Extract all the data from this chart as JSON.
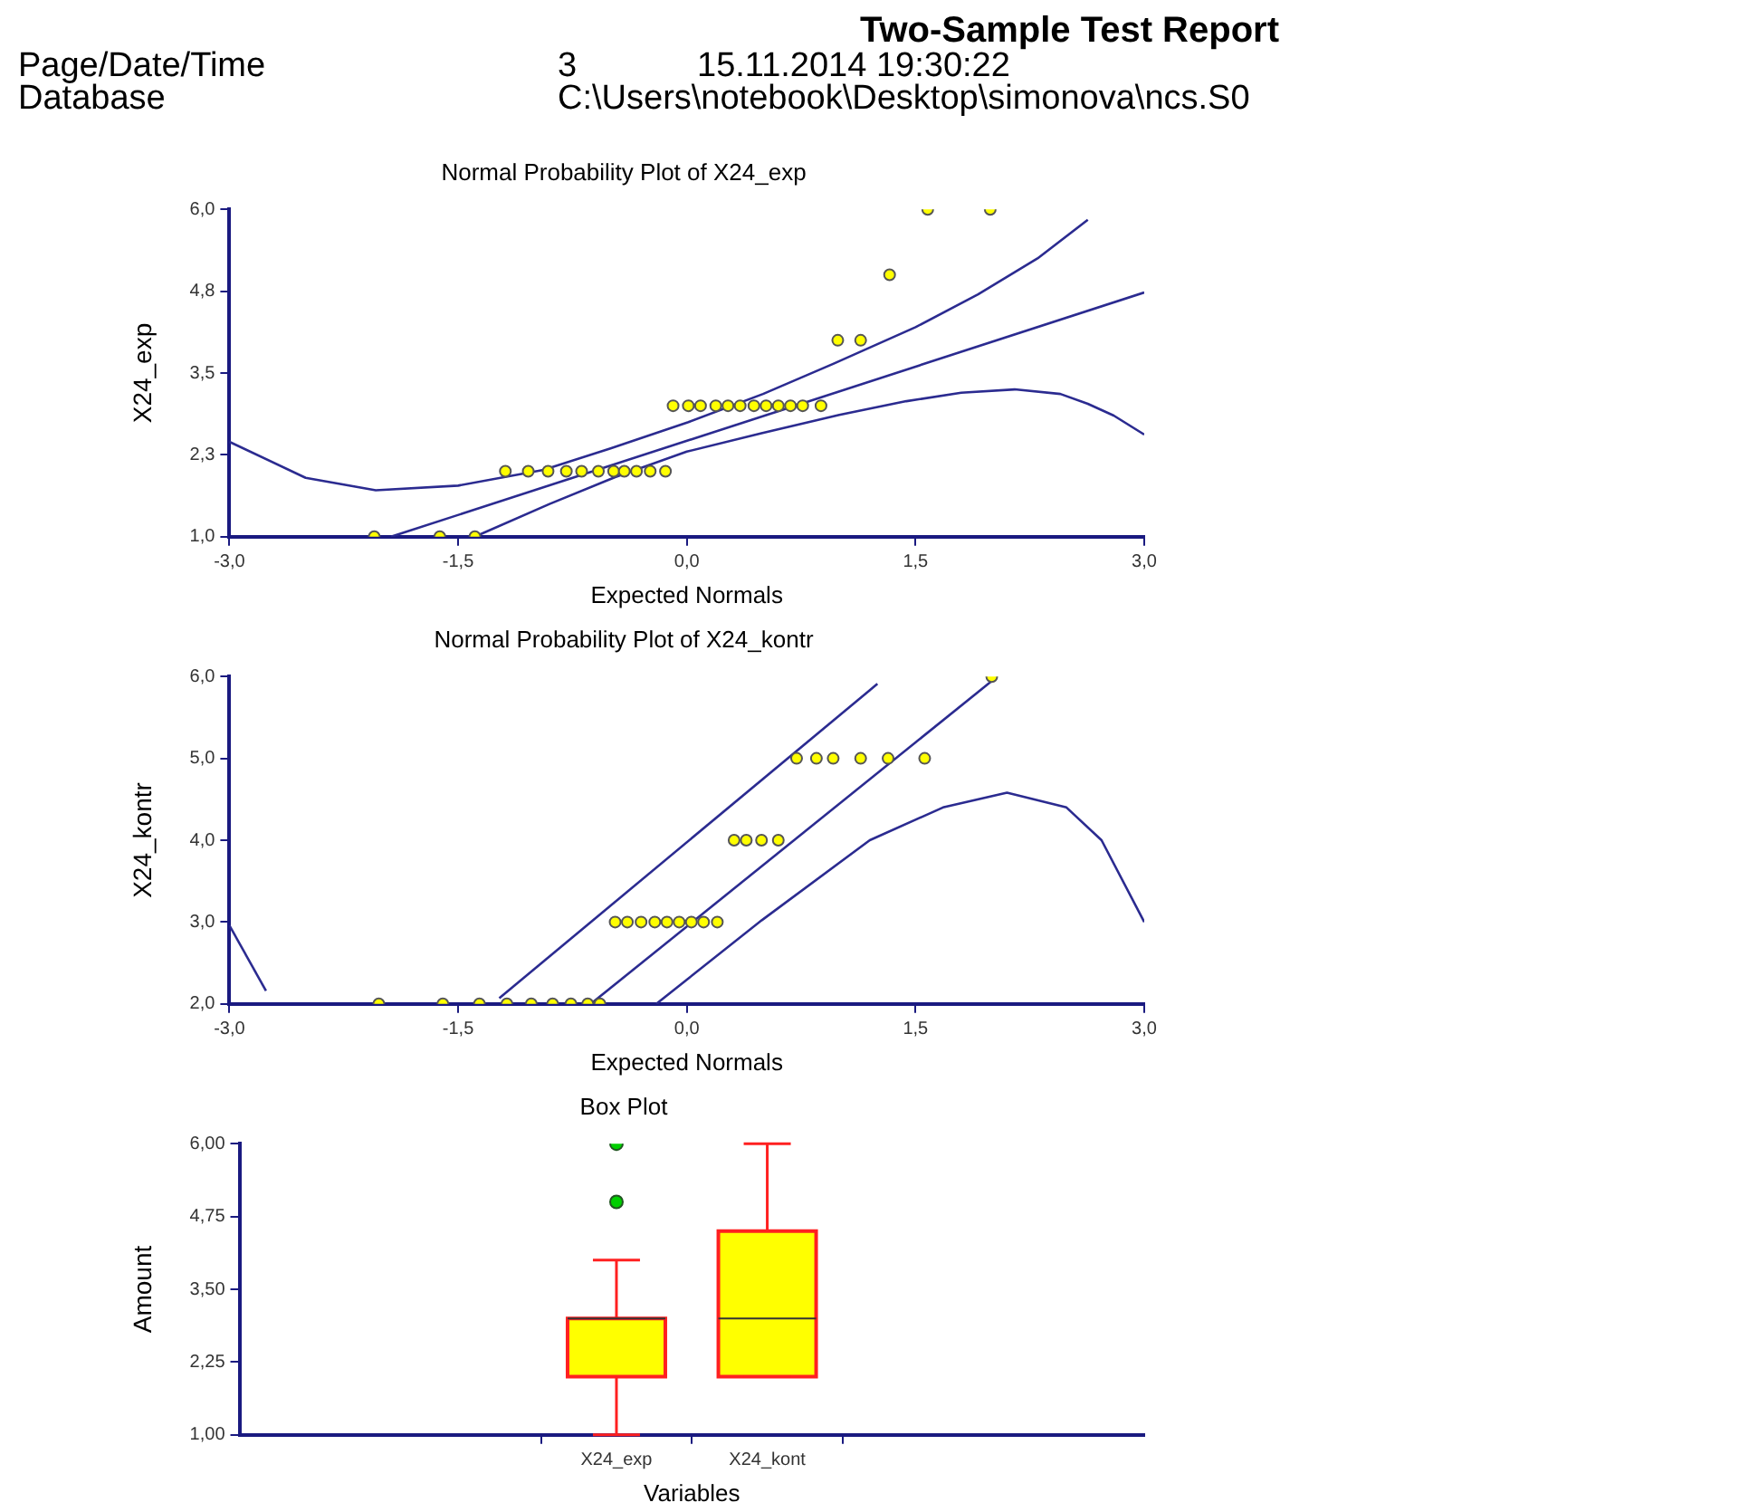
{
  "chart_data": [
    {
      "type": "other",
      "title": "Two-Sample Test Report",
      "annotations": [
        "Page/Date/Time",
        "3",
        "15.11.2014 19:30:22",
        "Database",
        "C:\\Users\\notebook\\Desktop\\simonova\\ncs.S0"
      ]
    },
    {
      "type": "scatter",
      "title": "Normal Probability Plot of X24_exp",
      "xlabel": "Expected Normals",
      "ylabel": "X24_exp",
      "xlim": [
        -3,
        3
      ],
      "xticks": [
        {
          "value": -3,
          "label": "-3,0"
        },
        {
          "value": -1.5,
          "label": "-1,5"
        },
        {
          "value": 0,
          "label": "0,0"
        },
        {
          "value": 1.5,
          "label": "1,5"
        },
        {
          "value": 3,
          "label": "3,0"
        }
      ],
      "ylim": [
        1,
        6
      ],
      "yticks": [
        {
          "value": 1,
          "label": "1,0"
        },
        {
          "value": 2.25,
          "label": "2,3"
        },
        {
          "value": 3.5,
          "label": "3,5"
        },
        {
          "value": 4.75,
          "label": "4,8"
        },
        {
          "value": 6,
          "label": "6,0"
        }
      ],
      "series": [
        {
          "type": "line",
          "color": "#2b2b90",
          "x": [
            -1.94,
            3.0
          ],
          "values": [
            1.0,
            4.73
          ]
        },
        {
          "type": "line",
          "color": "#2b2b90",
          "x": [
            -3.0,
            -2.5,
            -2.04,
            -1.5,
            -0.94,
            -0.5,
            0.01,
            0.5,
            0.96,
            1.5,
            1.91,
            2.3,
            2.63
          ],
          "values": [
            2.45,
            1.9,
            1.71,
            1.78,
            2.02,
            2.35,
            2.75,
            3.18,
            3.64,
            4.2,
            4.7,
            5.25,
            5.84
          ]
        },
        {
          "type": "line",
          "color": "#2b2b90",
          "x": [
            -1.39,
            -0.9,
            -0.47,
            0.0,
            0.49,
            1.0,
            1.44,
            1.8,
            2.15,
            2.45,
            2.63,
            2.8,
            3.0
          ],
          "values": [
            1.0,
            1.5,
            1.91,
            2.3,
            2.58,
            2.86,
            3.07,
            3.2,
            3.25,
            3.18,
            3.03,
            2.85,
            2.56
          ]
        },
        {
          "type": "scatter",
          "color": "#ffff00",
          "marker": "circle",
          "x": [
            -2.05,
            -1.62,
            -1.39,
            -1.19,
            -1.04,
            -0.91,
            -0.79,
            -0.69,
            -0.58,
            -0.48,
            -0.41,
            -0.33,
            -0.24,
            -0.14,
            -0.09,
            0.01,
            0.09,
            0.19,
            0.27,
            0.35,
            0.44,
            0.52,
            0.6,
            0.68,
            0.76,
            0.88,
            0.99,
            1.14,
            1.33,
            1.58,
            1.99
          ],
          "values": [
            1,
            1,
            1,
            2,
            2,
            2,
            2,
            2,
            2,
            2,
            2,
            2,
            2,
            2,
            3,
            3,
            3,
            3,
            3,
            3,
            3,
            3,
            3,
            3,
            3,
            3,
            4,
            4,
            5,
            6,
            6
          ]
        }
      ]
    },
    {
      "type": "scatter",
      "title": "Normal Probability Plot of X24_kontr",
      "xlabel": "Expected Normals",
      "ylabel": "X24_kontr",
      "xlim": [
        -3,
        3
      ],
      "xticks": [
        {
          "value": -3,
          "label": "-3,0"
        },
        {
          "value": -1.5,
          "label": "-1,5"
        },
        {
          "value": 0,
          "label": "0,0"
        },
        {
          "value": 1.5,
          "label": "1,5"
        },
        {
          "value": 3,
          "label": "3,0"
        }
      ],
      "ylim": [
        2,
        6
      ],
      "yticks": [
        {
          "value": 2,
          "label": "2,0"
        },
        {
          "value": 3,
          "label": "3,0"
        },
        {
          "value": 4,
          "label": "4,0"
        },
        {
          "value": 5,
          "label": "5,0"
        },
        {
          "value": 6,
          "label": "6,0"
        }
      ],
      "series": [
        {
          "type": "line",
          "color": "#2b2b90",
          "x": [
            -1.23,
            1.25
          ],
          "values": [
            2.07,
            5.91
          ]
        },
        {
          "type": "line",
          "color": "#2b2b90",
          "x": [
            -0.63,
            2.01
          ],
          "values": [
            2.0,
            5.96
          ]
        },
        {
          "type": "line",
          "color": "#2b2b90",
          "x": [
            -3.0,
            -2.76
          ],
          "values": [
            2.96,
            2.16
          ]
        },
        {
          "type": "line",
          "color": "#2b2b90",
          "x": [
            -0.2,
            0.49,
            1.2,
            1.68,
            2.1,
            2.49,
            2.72,
            3.0
          ],
          "values": [
            2.0,
            3.02,
            4.0,
            4.4,
            4.58,
            4.4,
            4.0,
            3.0
          ]
        },
        {
          "type": "scatter",
          "color": "#ffff00",
          "marker": "circle",
          "x": [
            -2.02,
            -1.6,
            -1.36,
            -1.18,
            -1.02,
            -0.88,
            -0.76,
            -0.65,
            -0.57,
            -0.47,
            -0.39,
            -0.3,
            -0.21,
            -0.13,
            -0.05,
            0.03,
            0.11,
            0.2,
            0.31,
            0.39,
            0.49,
            0.6,
            0.72,
            0.85,
            0.96,
            1.14,
            1.32,
            1.56,
            2.0
          ],
          "values": [
            2,
            2,
            2,
            2,
            2,
            2,
            2,
            2,
            2,
            3,
            3,
            3,
            3,
            3,
            3,
            3,
            3,
            3,
            4,
            4,
            4,
            4,
            5,
            5,
            5,
            5,
            5,
            5,
            6
          ]
        }
      ]
    },
    {
      "type": "box",
      "title": "Box Plot",
      "xlabel": "Variables",
      "ylabel": "Amount",
      "color": "#ffff00",
      "categories": [
        "X24_exp",
        "X24_kont"
      ],
      "ylim": [
        1,
        6
      ],
      "yticks": [
        {
          "value": 1,
          "label": "1,00"
        },
        {
          "value": 2.25,
          "label": "2,25"
        },
        {
          "value": 3.5,
          "label": "3,50"
        },
        {
          "value": 4.75,
          "label": "4,75"
        },
        {
          "value": 6,
          "label": "6,00"
        }
      ],
      "boxes": [
        {
          "low": 1,
          "q1": 2,
          "median": 3,
          "q3": 3,
          "high": 4,
          "outliers": [
            5,
            6
          ]
        },
        {
          "low": 2,
          "q1": 2,
          "median": 3,
          "q3": 4.5,
          "high": 6
        }
      ]
    }
  ]
}
